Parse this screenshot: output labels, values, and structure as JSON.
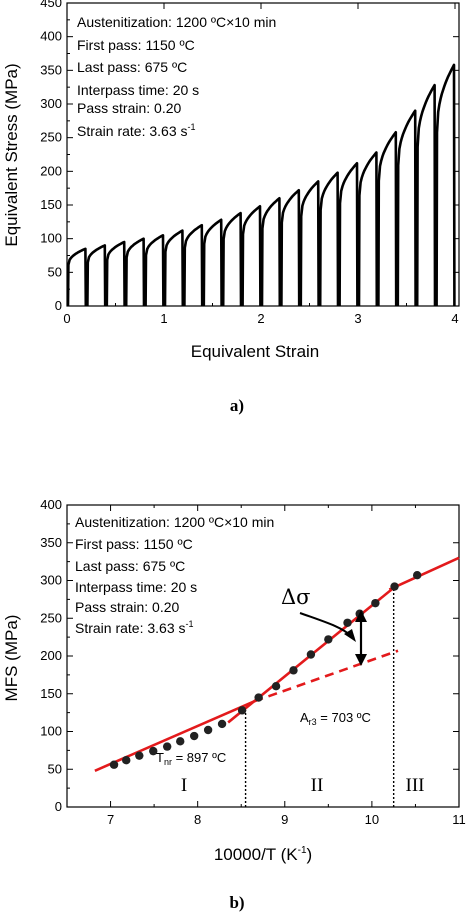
{
  "chart_data": [
    {
      "type": "line",
      "panel_label": "a)",
      "xlabel": "Equivalent Strain",
      "ylabel": "Equivalent Stress (MPa)",
      "xlim": [
        0,
        4.4
      ],
      "ylim": [
        0,
        450
      ],
      "xticks": [
        0,
        1,
        2,
        3,
        4
      ],
      "yticks": [
        0,
        50,
        100,
        150,
        200,
        250,
        300,
        350,
        400,
        450
      ],
      "info_lines": [
        "Austenitization: 1200 ºC×10 min",
        "First pass: 1150 ºC",
        "Last pass: 675 ºC",
        "Interpass time: 20 s",
        "Pass strain: 0.20"
      ],
      "strain_rate_text": "Strain rate: 3.63 s",
      "strain_rate_sup": "-1",
      "passes": [
        {
          "x0": 0.0,
          "peak": 85
        },
        {
          "x0": 0.2,
          "peak": 90
        },
        {
          "x0": 0.4,
          "peak": 95
        },
        {
          "x0": 0.6,
          "peak": 100
        },
        {
          "x0": 0.8,
          "peak": 105
        },
        {
          "x0": 1.0,
          "peak": 112
        },
        {
          "x0": 1.2,
          "peak": 120
        },
        {
          "x0": 1.4,
          "peak": 128
        },
        {
          "x0": 1.6,
          "peak": 138
        },
        {
          "x0": 1.8,
          "peak": 148
        },
        {
          "x0": 2.0,
          "peak": 160
        },
        {
          "x0": 2.2,
          "peak": 172
        },
        {
          "x0": 2.4,
          "peak": 185
        },
        {
          "x0": 2.6,
          "peak": 198
        },
        {
          "x0": 2.8,
          "peak": 212
        },
        {
          "x0": 3.0,
          "peak": 228
        },
        {
          "x0": 3.2,
          "peak": 258
        },
        {
          "x0": 3.4,
          "peak": 290
        },
        {
          "x0": 3.6,
          "peak": 328
        },
        {
          "x0": 3.8,
          "peak": 358
        }
      ]
    },
    {
      "type": "scatter",
      "panel_label": "b)",
      "xlabel_text": "10000/T (K",
      "xlabel_sup": "-1",
      "xlabel_tail": ")",
      "ylabel": "MFS (MPa)",
      "xlim": [
        6.5,
        11.0
      ],
      "ylim": [
        0,
        400
      ],
      "xticks": [
        7,
        8,
        9,
        10,
        11
      ],
      "yticks": [
        0,
        50,
        100,
        150,
        200,
        250,
        300,
        350,
        400
      ],
      "info_lines": [
        "Austenitization: 1200 ºC×10 min",
        "First pass: 1150 ºC",
        "Last pass: 675 ºC",
        "Interpass time: 20 s",
        "Pass strain: 0.20"
      ],
      "strain_rate_text": "Strain rate: 3.63 s",
      "strain_rate_sup": "-1",
      "points": {
        "x": [
          7.04,
          7.18,
          7.33,
          7.49,
          7.65,
          7.8,
          7.96,
          8.12,
          8.28,
          8.51,
          8.7,
          8.9,
          9.1,
          9.3,
          9.5,
          9.72,
          9.86,
          10.04,
          10.26,
          10.52
        ],
        "y": [
          56,
          62,
          68,
          74,
          80,
          87,
          94,
          102,
          110,
          128,
          145,
          160,
          181,
          202,
          222,
          244,
          256,
          270,
          292,
          307
        ]
      },
      "fit_line_1": {
        "x": [
          6.82,
          8.65
        ],
        "y": [
          48,
          140
        ]
      },
      "fit_line_2": {
        "x": [
          8.35,
          10.3
        ],
        "y": [
          112,
          295
        ]
      },
      "fit_line_3": {
        "x": [
          10.2,
          11.0
        ],
        "y": [
          288,
          330
        ]
      },
      "dashed_extension": {
        "x": [
          8.65,
          10.3
        ],
        "y": [
          140,
          207
        ]
      },
      "tnr_x": 8.55,
      "ar3_x": 10.25,
      "tnr_label": "T",
      "tnr_sub": "nr",
      "tnr_value": " = 897 ºC",
      "ar3_label": "A",
      "ar3_sub": "r3",
      "ar3_value": " = 703 ºC",
      "delta_sigma": "Δσ",
      "regions": [
        "I",
        "II",
        "III"
      ],
      "line_color": "#e31a1c"
    }
  ]
}
